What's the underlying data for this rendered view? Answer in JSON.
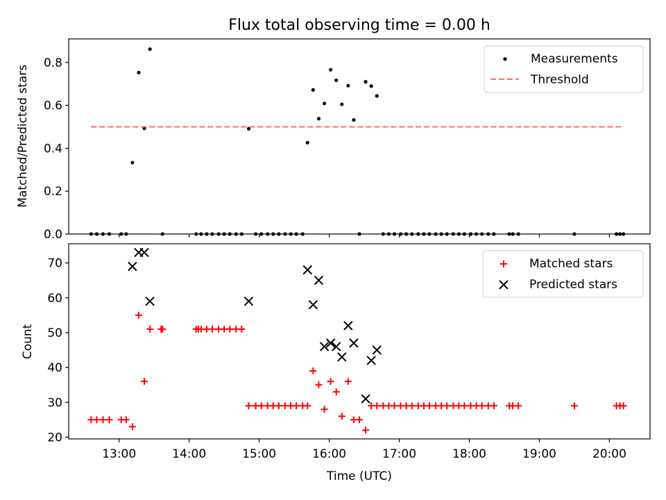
{
  "title": "Flux total observing time = 0.00 h",
  "chart_data": [
    {
      "type": "scatter",
      "ylabel": "Matched/Predicted stars",
      "xlabel": "",
      "x_unit": "hours UTC",
      "xlim": [
        12.28,
        20.58
      ],
      "ylim": [
        0,
        0.91
      ],
      "yticks": [
        0.0,
        0.2,
        0.4,
        0.6,
        0.8
      ],
      "ytick_labels": [
        "0.0",
        "0.2",
        "0.4",
        "0.6",
        "0.8"
      ],
      "grid": false,
      "legend_position": "upper right",
      "series": [
        {
          "name": "Measurements",
          "marker": "dot",
          "color": "#000000",
          "points": [
            [
              12.6,
              0
            ],
            [
              12.68,
              0
            ],
            [
              12.77,
              0
            ],
            [
              12.86,
              0
            ],
            [
              13.03,
              0
            ],
            [
              13.1,
              0
            ],
            [
              13.19,
              0.333
            ],
            [
              13.28,
              0.753
            ],
            [
              13.36,
              0.493
            ],
            [
              13.44,
              0.862
            ],
            [
              13.62,
              0
            ],
            [
              14.1,
              0
            ],
            [
              14.17,
              0
            ],
            [
              14.25,
              0
            ],
            [
              14.33,
              0
            ],
            [
              14.42,
              0
            ],
            [
              14.5,
              0
            ],
            [
              14.58,
              0
            ],
            [
              14.67,
              0
            ],
            [
              14.75,
              0
            ],
            [
              14.85,
              0.491
            ],
            [
              14.95,
              0
            ],
            [
              15.03,
              0
            ],
            [
              15.12,
              0
            ],
            [
              15.2,
              0
            ],
            [
              15.28,
              0
            ],
            [
              15.37,
              0
            ],
            [
              15.45,
              0
            ],
            [
              15.53,
              0
            ],
            [
              15.62,
              0
            ],
            [
              15.69,
              0.426
            ],
            [
              15.77,
              0.672
            ],
            [
              15.85,
              0.538
            ],
            [
              15.93,
              0.609
            ],
            [
              16.02,
              0.766
            ],
            [
              16.1,
              0.717
            ],
            [
              16.18,
              0.605
            ],
            [
              16.27,
              0.692
            ],
            [
              16.35,
              0.532
            ],
            [
              16.43,
              0
            ],
            [
              16.52,
              0.71
            ],
            [
              16.6,
              0.69
            ],
            [
              16.68,
              0.644
            ],
            [
              16.77,
              0
            ],
            [
              16.85,
              0
            ],
            [
              16.93,
              0
            ],
            [
              17.02,
              0
            ],
            [
              17.1,
              0
            ],
            [
              17.18,
              0
            ],
            [
              17.27,
              0
            ],
            [
              17.35,
              0
            ],
            [
              17.43,
              0
            ],
            [
              17.52,
              0
            ],
            [
              17.6,
              0
            ],
            [
              17.68,
              0
            ],
            [
              17.77,
              0
            ],
            [
              17.85,
              0
            ],
            [
              17.93,
              0
            ],
            [
              18.02,
              0
            ],
            [
              18.1,
              0
            ],
            [
              18.18,
              0
            ],
            [
              18.27,
              0
            ],
            [
              18.35,
              0
            ],
            [
              18.57,
              0
            ],
            [
              18.62,
              0
            ],
            [
              18.7,
              0
            ],
            [
              19.5,
              0
            ],
            [
              20.1,
              0
            ],
            [
              20.15,
              0
            ],
            [
              20.2,
              0
            ]
          ]
        },
        {
          "name": "Threshold",
          "style": "dashed",
          "color": "#ff6b6b",
          "points": [
            [
              12.6,
              0.5
            ],
            [
              20.18,
              0.5
            ]
          ]
        }
      ]
    },
    {
      "type": "scatter",
      "ylabel": "Count",
      "xlabel": "Time (UTC)",
      "x_unit": "hours UTC",
      "xlim": [
        12.28,
        20.58
      ],
      "ylim": [
        19.5,
        75.5
      ],
      "yticks": [
        20,
        30,
        40,
        50,
        60,
        70
      ],
      "ytick_labels": [
        "20",
        "30",
        "40",
        "50",
        "60",
        "70"
      ],
      "xticks": [
        13,
        14,
        15,
        16,
        17,
        18,
        19,
        20
      ],
      "xtick_labels": [
        "13:00",
        "14:00",
        "15:00",
        "16:00",
        "17:00",
        "18:00",
        "19:00",
        "20:00"
      ],
      "grid": false,
      "legend_position": "upper right",
      "series": [
        {
          "name": "Matched stars",
          "marker": "plus",
          "color": "#ff0000",
          "points": [
            [
              12.6,
              25
            ],
            [
              12.68,
              25
            ],
            [
              12.77,
              25
            ],
            [
              12.86,
              25
            ],
            [
              13.03,
              25
            ],
            [
              13.1,
              25
            ],
            [
              13.19,
              23
            ],
            [
              13.28,
              55
            ],
            [
              13.36,
              36
            ],
            [
              13.44,
              51
            ],
            [
              13.6,
              51
            ],
            [
              13.62,
              51
            ],
            [
              14.1,
              51
            ],
            [
              14.13,
              51
            ],
            [
              14.17,
              51
            ],
            [
              14.25,
              51
            ],
            [
              14.33,
              51
            ],
            [
              14.42,
              51
            ],
            [
              14.5,
              51
            ],
            [
              14.58,
              51
            ],
            [
              14.67,
              51
            ],
            [
              14.75,
              51
            ],
            [
              14.85,
              29
            ],
            [
              14.95,
              29
            ],
            [
              15.03,
              29
            ],
            [
              15.12,
              29
            ],
            [
              15.2,
              29
            ],
            [
              15.28,
              29
            ],
            [
              15.37,
              29
            ],
            [
              15.45,
              29
            ],
            [
              15.53,
              29
            ],
            [
              15.62,
              29
            ],
            [
              15.69,
              29
            ],
            [
              15.77,
              39
            ],
            [
              15.85,
              35
            ],
            [
              15.93,
              28
            ],
            [
              16.02,
              36
            ],
            [
              16.1,
              33
            ],
            [
              16.18,
              26
            ],
            [
              16.27,
              36
            ],
            [
              16.35,
              25
            ],
            [
              16.43,
              25
            ],
            [
              16.52,
              22
            ],
            [
              16.6,
              29
            ],
            [
              16.68,
              29
            ],
            [
              16.77,
              29
            ],
            [
              16.85,
              29
            ],
            [
              16.93,
              29
            ],
            [
              17.02,
              29
            ],
            [
              17.1,
              29
            ],
            [
              17.18,
              29
            ],
            [
              17.27,
              29
            ],
            [
              17.35,
              29
            ],
            [
              17.43,
              29
            ],
            [
              17.52,
              29
            ],
            [
              17.6,
              29
            ],
            [
              17.68,
              29
            ],
            [
              17.77,
              29
            ],
            [
              17.85,
              29
            ],
            [
              17.93,
              29
            ],
            [
              18.02,
              29
            ],
            [
              18.1,
              29
            ],
            [
              18.18,
              29
            ],
            [
              18.27,
              29
            ],
            [
              18.35,
              29
            ],
            [
              18.57,
              29
            ],
            [
              18.62,
              29
            ],
            [
              18.7,
              29
            ],
            [
              19.5,
              29
            ],
            [
              20.1,
              29
            ],
            [
              20.15,
              29
            ],
            [
              20.2,
              29
            ]
          ]
        },
        {
          "name": "Predicted stars",
          "marker": "x",
          "color": "#000000",
          "points": [
            [
              13.19,
              69
            ],
            [
              13.28,
              73
            ],
            [
              13.36,
              73
            ],
            [
              13.44,
              59
            ],
            [
              14.85,
              59
            ],
            [
              15.69,
              68
            ],
            [
              15.77,
              58
            ],
            [
              15.85,
              65
            ],
            [
              15.93,
              46
            ],
            [
              16.02,
              47
            ],
            [
              16.1,
              46
            ],
            [
              16.18,
              43
            ],
            [
              16.27,
              52
            ],
            [
              16.35,
              47
            ],
            [
              16.52,
              31
            ],
            [
              16.6,
              42
            ],
            [
              16.68,
              45
            ]
          ]
        }
      ]
    }
  ]
}
